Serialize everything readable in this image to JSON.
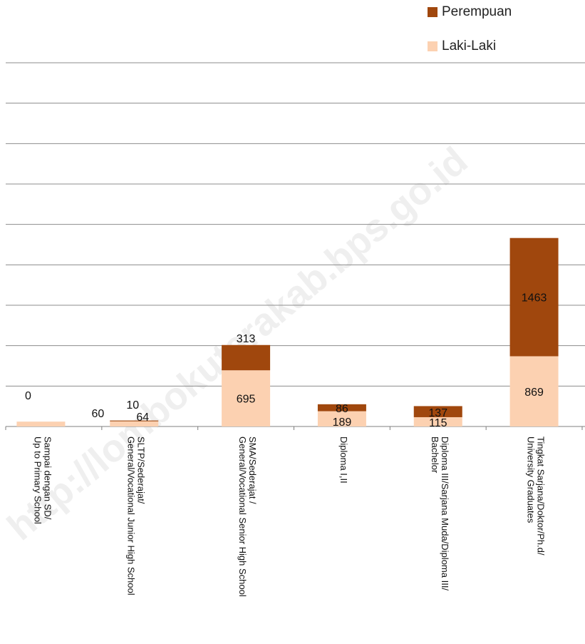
{
  "watermark": {
    "text": "http://lombokutarakab.bps.go.id",
    "color": "#efefef"
  },
  "chart_data": {
    "type": "bar",
    "stacked": true,
    "title": "",
    "xlabel": "",
    "ylabel": "",
    "ylim": [
      0,
      4500
    ],
    "grid": true,
    "legend_position": "top-right",
    "categories": [
      "Sampai dengan SD/\nUp to Primary School",
      "SLTP/Sederajat/\nGeneral/Vocational Junior High School",
      "SMA/Sederajat /\nGeneral/Vocational Senior High School",
      "Diploma I,II",
      "Diploma III/Sarjana Muda/Diploma III/\nBachelor",
      "Tingkat Sarjana/Doktor/Ph.d/\nUniversity Graduates"
    ],
    "series": [
      {
        "name": "Laki-Laki",
        "color": "#fcd1b1",
        "values": [
          60,
          64,
          695,
          189,
          115,
          869
        ]
      },
      {
        "name": "Perempuan",
        "color": "#a0470d",
        "values": [
          0,
          10,
          313,
          86,
          137,
          1463
        ]
      }
    ]
  }
}
